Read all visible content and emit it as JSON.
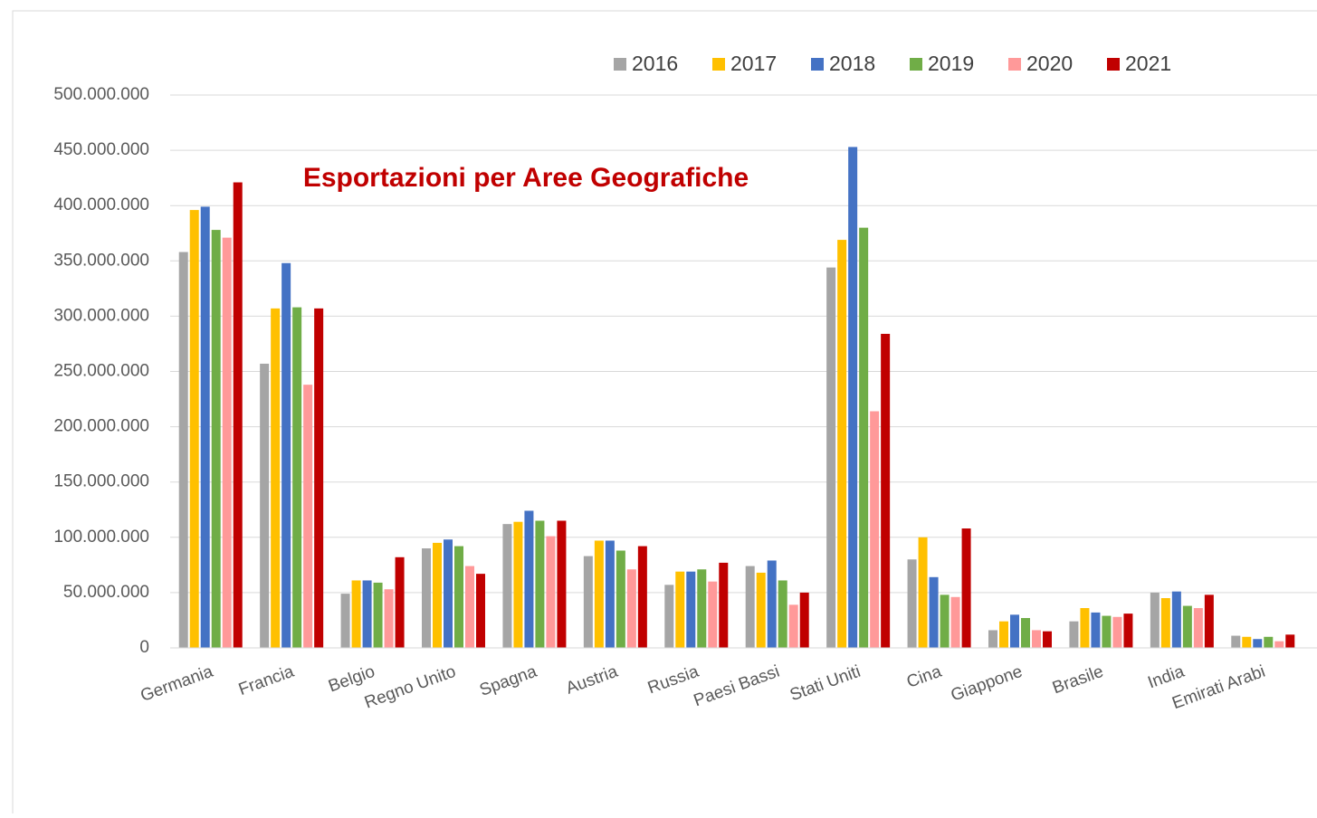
{
  "chart_data": {
    "type": "bar",
    "title": "Esportazioni per Aree Geografiche",
    "categories": [
      "Germania",
      "Francia",
      "Belgio",
      "Regno Unito",
      "Spagna",
      "Austria",
      "Russia",
      "Paesi Bassi",
      "Stati Uniti",
      "Cina",
      "Giappone",
      "Brasile",
      "India",
      "Emirati Arabi"
    ],
    "series": [
      {
        "name": "2016",
        "color": "#a5a5a5",
        "values": [
          358000000,
          257000000,
          49000000,
          90000000,
          112000000,
          83000000,
          57000000,
          74000000,
          344000000,
          80000000,
          16000000,
          24000000,
          50000000,
          11000000
        ]
      },
      {
        "name": "2017",
        "color": "#ffc000",
        "values": [
          396000000,
          307000000,
          61000000,
          95000000,
          114000000,
          97000000,
          69000000,
          68000000,
          369000000,
          100000000,
          24000000,
          36000000,
          45000000,
          10000000
        ]
      },
      {
        "name": "2018",
        "color": "#4472c4",
        "values": [
          399000000,
          348000000,
          61000000,
          98000000,
          124000000,
          97000000,
          69000000,
          79000000,
          453000000,
          64000000,
          30000000,
          32000000,
          51000000,
          8000000
        ]
      },
      {
        "name": "2019",
        "color": "#70ad47",
        "values": [
          378000000,
          308000000,
          59000000,
          92000000,
          115000000,
          88000000,
          71000000,
          61000000,
          380000000,
          48000000,
          27000000,
          29000000,
          38000000,
          10000000
        ]
      },
      {
        "name": "2020",
        "color": "#ff9999",
        "values": [
          371000000,
          238000000,
          53000000,
          74000000,
          101000000,
          71000000,
          60000000,
          39000000,
          214000000,
          46000000,
          16000000,
          28000000,
          36000000,
          6000000
        ]
      },
      {
        "name": "2021",
        "color": "#c00000",
        "values": [
          421000000,
          307000000,
          82000000,
          67000000,
          115000000,
          92000000,
          77000000,
          50000000,
          284000000,
          108000000,
          15000000,
          31000000,
          48000000,
          12000000
        ]
      }
    ],
    "ylim": [
      0,
      500000000
    ],
    "yticks": [
      0,
      {
        "value": 50000000,
        "label": "50.000.000"
      },
      {
        "value": 100000000,
        "label": "100.000.000"
      },
      {
        "value": 150000000,
        "label": "150.000.000"
      },
      {
        "value": 200000000,
        "label": "200.000.000"
      },
      {
        "value": 250000000,
        "label": "250.000.000"
      },
      {
        "value": 300000000,
        "label": "300.000.000"
      },
      {
        "value": 350000000,
        "label": "350.000.000"
      },
      {
        "value": 400000000,
        "label": "400.000.000"
      },
      {
        "value": 450000000,
        "label": "450.000.000"
      },
      {
        "value": 500000000,
        "label": "500.000.000"
      }
    ],
    "grid": true,
    "legend": "top"
  }
}
